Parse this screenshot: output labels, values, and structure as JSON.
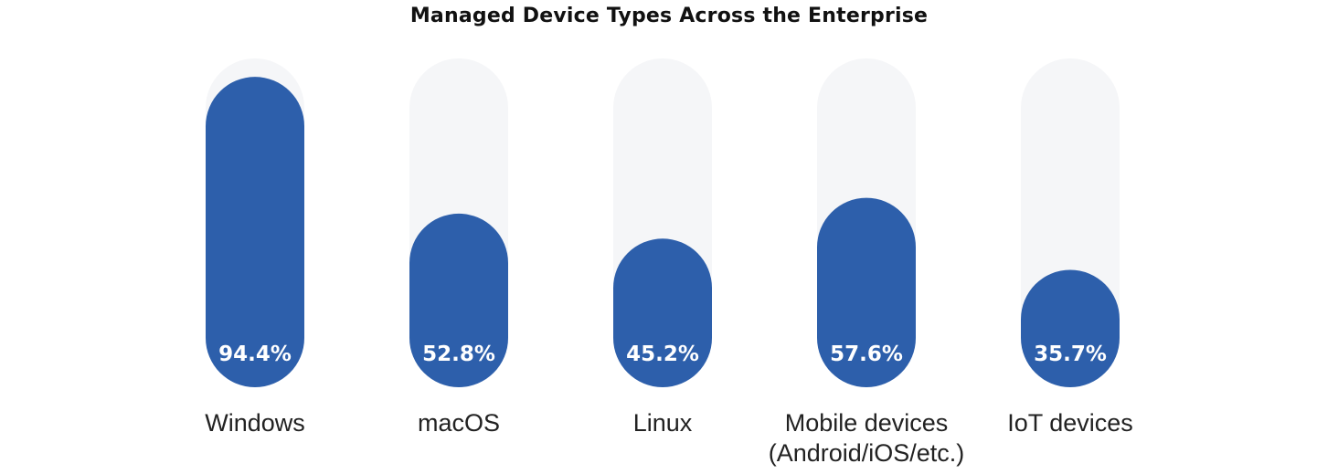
{
  "chart_data": {
    "type": "bar",
    "title": "Managed Device Types Across the Enterprise",
    "xlabel": "",
    "ylabel": "",
    "ylim": [
      0,
      100
    ],
    "grid": false,
    "legend": "none",
    "unit": "%",
    "categories": [
      [
        "Windows"
      ],
      [
        "macOS"
      ],
      [
        "Linux"
      ],
      [
        "Mobile devices",
        "(Android/iOS/etc.)"
      ],
      [
        "IoT devices"
      ]
    ],
    "values": [
      94.4,
      52.8,
      45.2,
      57.6,
      35.7
    ],
    "value_labels": [
      "94.4%",
      "52.8%",
      "45.2%",
      "57.6%",
      "35.7%"
    ],
    "colors": {
      "bar": "#2D5FAB",
      "track": "#F5F6F8",
      "value_text": "#FFFFFF",
      "category_text": "#222222",
      "title_text": "#111111"
    }
  }
}
